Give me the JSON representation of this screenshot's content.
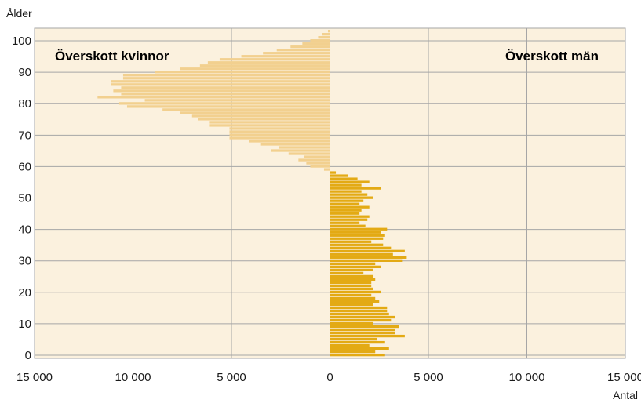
{
  "chart_data": {
    "type": "bar",
    "orientation": "horizontal",
    "ylabel": "Ålder",
    "xlabel": "Antal",
    "annotations": [
      "Överskott kvinnor",
      "Överskott män"
    ],
    "x_range": [
      -15000,
      15000
    ],
    "x_ticks": [
      -15000,
      -10000,
      -5000,
      0,
      5000,
      10000,
      15000
    ],
    "x_tick_labels": [
      "15 000",
      "10 000",
      "5 000",
      "0",
      "5 000",
      "10 000",
      "15 000"
    ],
    "y_range": [
      -1,
      104
    ],
    "y_ticks": [
      0,
      10,
      20,
      30,
      40,
      50,
      60,
      70,
      80,
      90,
      100
    ],
    "y_tick_labels": [
      "0",
      "10",
      "20",
      "30",
      "40",
      "50",
      "60",
      "70",
      "80",
      "90",
      "100"
    ],
    "grid": true,
    "colors": {
      "background": "#fbf1de",
      "grid": "#a6a6a6",
      "men": "#e3aa14",
      "women": "#f2d08f"
    },
    "series": [
      {
        "name": "Överskott män",
        "color": "#e3aa14",
        "ages": [
          0,
          1,
          2,
          3,
          4,
          5,
          6,
          7,
          8,
          9,
          10,
          11,
          12,
          13,
          14,
          15,
          16,
          17,
          18,
          19,
          20,
          21,
          22,
          23,
          24,
          25,
          26,
          27,
          28,
          29,
          30,
          31,
          32,
          33,
          34,
          35,
          36,
          37,
          38,
          39,
          40,
          41,
          42,
          43,
          44,
          45,
          46,
          47,
          48,
          49,
          50,
          51,
          52,
          53,
          54,
          55,
          56,
          57,
          58
        ],
        "values": [
          2800,
          2300,
          3000,
          2000,
          2800,
          2400,
          3800,
          3300,
          3300,
          3500,
          2200,
          3100,
          3300,
          3000,
          2900,
          2900,
          2200,
          2500,
          2300,
          2100,
          2600,
          2200,
          2100,
          2100,
          2300,
          2200,
          1700,
          2200,
          2600,
          2300,
          3700,
          3900,
          3200,
          3800,
          3100,
          2700,
          2100,
          2700,
          2800,
          2600,
          2900,
          1800,
          1500,
          1900,
          2000,
          1500,
          1600,
          2000,
          1500,
          1700,
          2200,
          1900,
          1600,
          2600,
          1600,
          2000,
          1400,
          900,
          300
        ]
      },
      {
        "name": "Överskott kvinnor",
        "color": "#f2d08f",
        "ages": [
          59,
          60,
          61,
          62,
          63,
          64,
          65,
          66,
          67,
          68,
          69,
          70,
          71,
          72,
          73,
          74,
          75,
          76,
          77,
          78,
          79,
          80,
          81,
          82,
          83,
          84,
          85,
          86,
          87,
          88,
          89,
          90,
          91,
          92,
          93,
          94,
          95,
          96,
          97,
          98,
          99,
          100,
          101,
          102,
          103
        ],
        "values": [
          -300,
          -1000,
          -1200,
          -1600,
          -1300,
          -2100,
          -3000,
          -2600,
          -3500,
          -4100,
          -5100,
          -5100,
          -5100,
          -5100,
          -6100,
          -6100,
          -6700,
          -7000,
          -7600,
          -8500,
          -10300,
          -10700,
          -9400,
          -11800,
          -10600,
          -11000,
          -10600,
          -11100,
          -11100,
          -10500,
          -10500,
          -8900,
          -7600,
          -6600,
          -6200,
          -5600,
          -4500,
          -3400,
          -2700,
          -2000,
          -1400,
          -1000,
          -600,
          -400,
          -100
        ]
      }
    ]
  }
}
